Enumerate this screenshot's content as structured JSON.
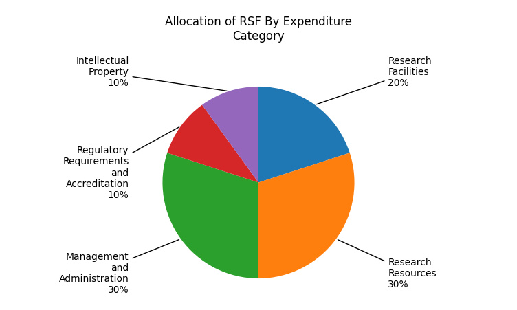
{
  "chart_data": {
    "type": "pie",
    "title": "Allocation of RSF By Expenditure\nCategory",
    "categories": [
      "Research\nFacilities\n20%",
      "Research\nResources\n30%",
      "Management\nand\nAdministration\n30%",
      "Regulatory\nRequirements\nand\nAccreditation\n10%",
      "Intellectual\nProperty\n10%"
    ],
    "values": [
      20,
      30,
      30,
      10,
      10
    ]
  }
}
